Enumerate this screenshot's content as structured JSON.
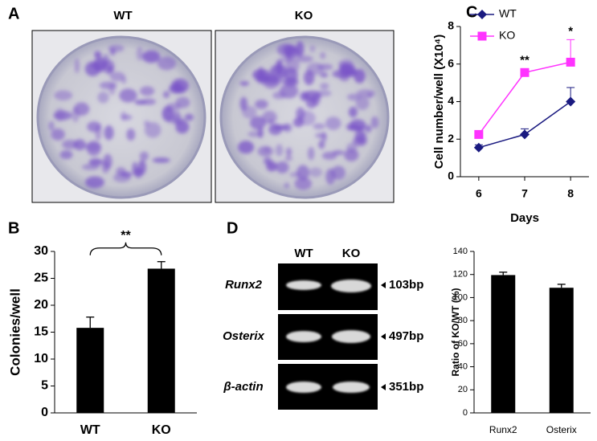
{
  "panel_a": {
    "label": "A",
    "images": [
      {
        "label": "WT"
      },
      {
        "label": "KO"
      }
    ]
  },
  "chart_data": [
    {
      "type": "bar",
      "panel_label": "B",
      "categories": [
        "WT",
        "KO"
      ],
      "values": [
        15.8,
        26.8
      ],
      "errors": [
        2.0,
        1.3
      ],
      "color": "#000000",
      "ylabel": "Colonies/well",
      "ylim": [
        0,
        30
      ],
      "yticks": [
        0,
        5,
        10,
        15,
        20,
        25,
        30
      ],
      "annotation": "**"
    },
    {
      "type": "line",
      "panel_label": "C",
      "x": [
        6,
        7,
        8
      ],
      "xlim": [
        5.6,
        8.4
      ],
      "xticks": [
        6,
        7,
        8
      ],
      "xlabel": "Days",
      "ylabel": "Cell number/well (X10⁴)",
      "ylim": [
        0,
        8
      ],
      "yticks": [
        0,
        2,
        4,
        6,
        8
      ],
      "legend": "upper left",
      "series": [
        {
          "name": "WT",
          "color": "#1a1a80",
          "marker": "diamond",
          "values": [
            1.55,
            2.25,
            4.0
          ],
          "errors": [
            0.15,
            0.3,
            0.75
          ]
        },
        {
          "name": "KO",
          "color": "#ff33ff",
          "marker": "square",
          "values": [
            2.25,
            5.55,
            6.1
          ],
          "errors": [
            0.15,
            0.2,
            1.2
          ]
        }
      ],
      "annotations": [
        {
          "x": 7,
          "text": "**"
        },
        {
          "x": 8,
          "text": "*"
        }
      ]
    },
    {
      "type": "bar",
      "categories": [
        "Runx2",
        "Osterix"
      ],
      "values": [
        119.5,
        108.5
      ],
      "errors": [
        2.5,
        3.0
      ],
      "color": "#000000",
      "ylabel": "Ratio of KO/WT (%)",
      "ylim": [
        0,
        140
      ],
      "yticks": [
        0,
        20,
        40,
        60,
        80,
        100,
        120,
        140
      ]
    }
  ],
  "panel_d_gel": {
    "label": "D",
    "lanes": [
      "WT",
      "KO"
    ],
    "rows": [
      {
        "gene": "Runx2",
        "size": "103bp"
      },
      {
        "gene": "Osterix",
        "size": "497bp"
      },
      {
        "gene": "β-actin",
        "size": "351bp"
      }
    ]
  }
}
